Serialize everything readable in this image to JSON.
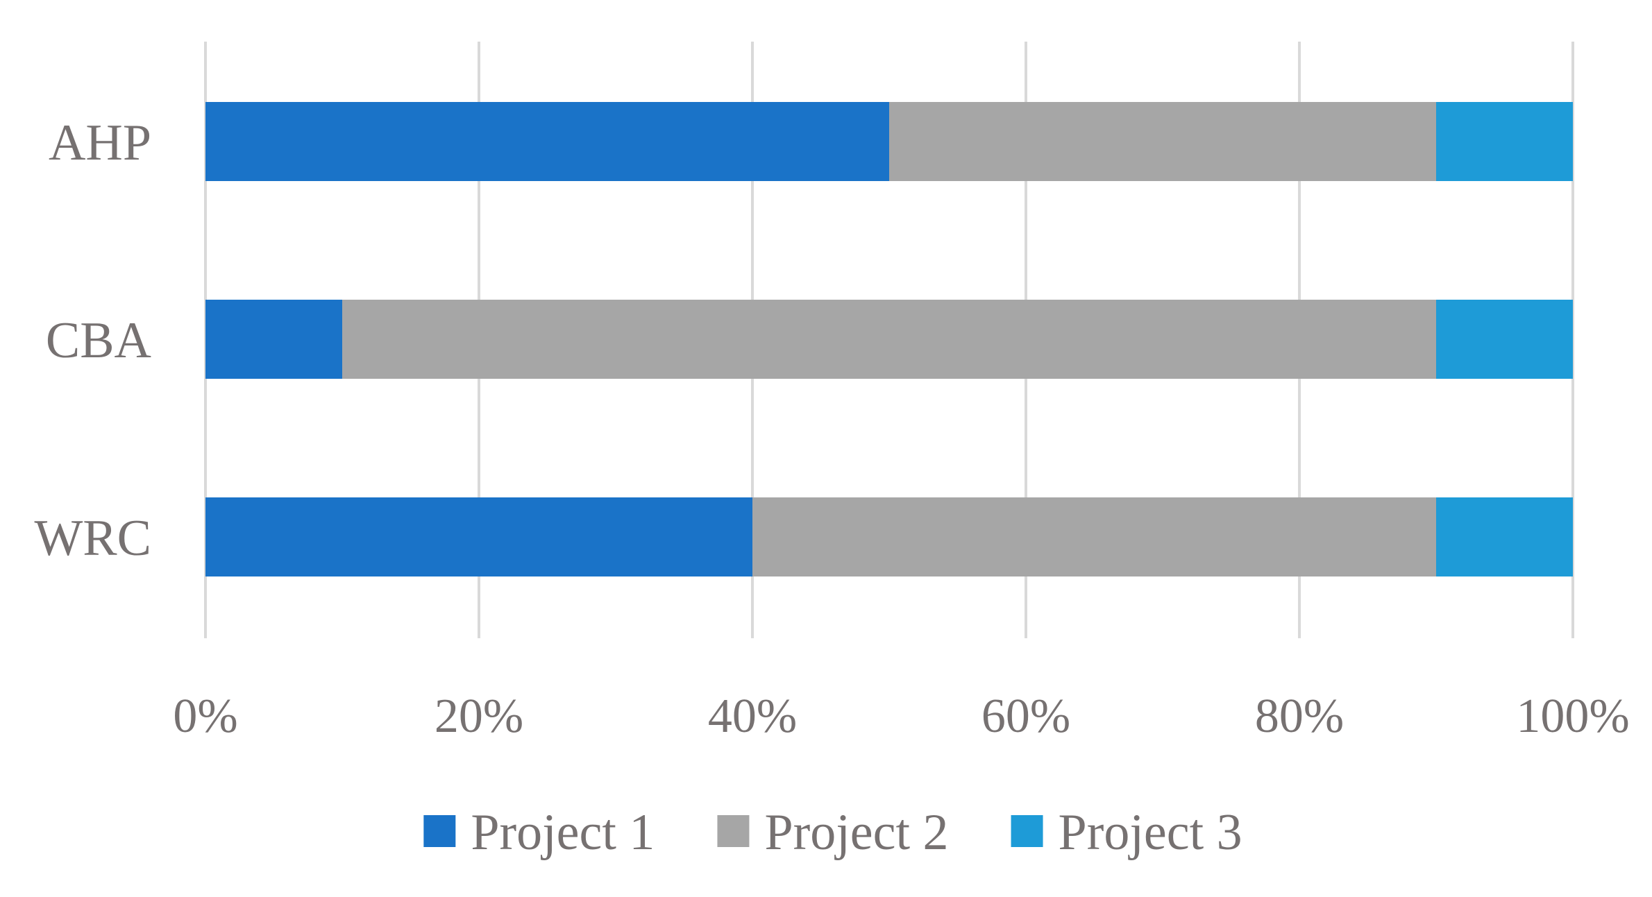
{
  "chart_data": {
    "type": "bar",
    "orientation": "horizontal",
    "stacked": "percent",
    "categories": [
      "AHP",
      "CBA",
      "WRC"
    ],
    "series": [
      {
        "name": "Project 1",
        "values": [
          50,
          10,
          40
        ],
        "color": "#1a73c8"
      },
      {
        "name": "Project 2",
        "values": [
          40,
          80,
          50
        ],
        "color": "#a6a6a6"
      },
      {
        "name": "Project 3",
        "values": [
          10,
          10,
          10
        ],
        "color": "#1e9bd7"
      }
    ],
    "x_ticks": [
      "0%",
      "20%",
      "40%",
      "60%",
      "80%",
      "100%"
    ],
    "xlim": [
      0,
      100
    ],
    "title": "",
    "xlabel": "",
    "ylabel": "",
    "grid": "vertical",
    "legend": "bottom",
    "text_color": "#767171",
    "grid_color": "#d9d9d9"
  }
}
